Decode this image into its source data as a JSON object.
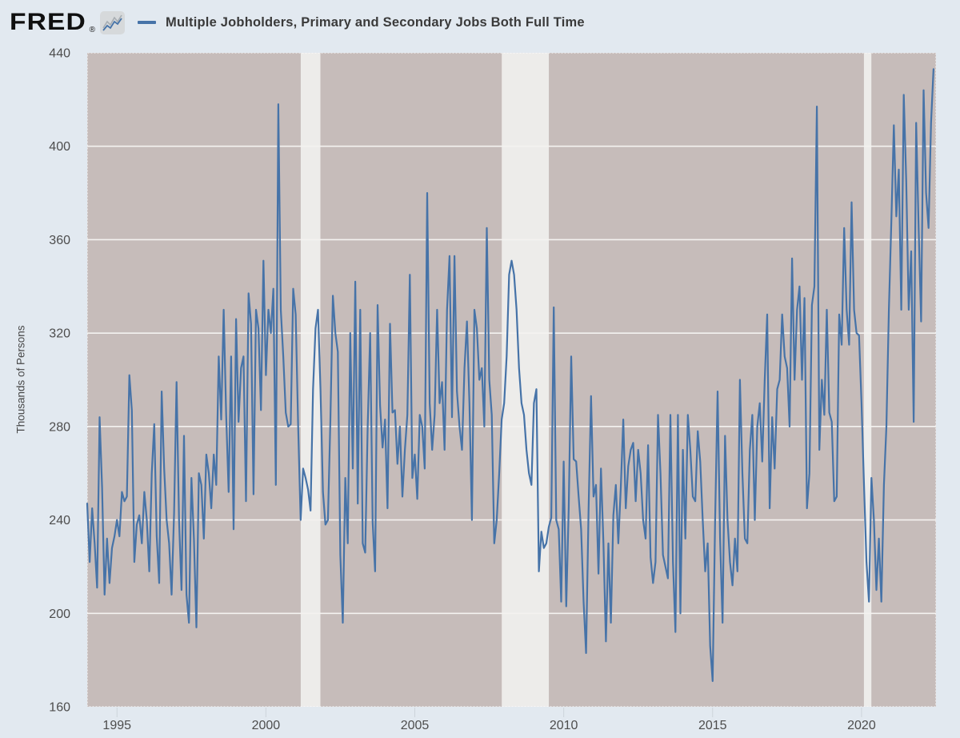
{
  "header": {
    "logo_text": "FRED",
    "registered_mark": "®",
    "legend_label": "Multiple Jobholders, Primary and Secondary Jobs Both Full Time"
  },
  "y_axis_title": "Thousands of Persons",
  "colors": {
    "page_bg": "#e2e9f0",
    "plot_bg": "#c6bcba",
    "recession_band": "#edecea",
    "gridline": "#f4f2f0",
    "plot_border": "rgba(255,255,255,0.55)",
    "line": "#4673a8",
    "tick_text": "#4d4d4d",
    "axis_tick": "#cdd4da",
    "title_text": "#3a3a3a"
  },
  "chart_data": {
    "type": "line",
    "title": "Multiple Jobholders, Primary and Secondary Jobs Both Full Time",
    "ylabel": "Thousands of Persons",
    "xlabel": "",
    "units": "Thousands of Persons",
    "frequency": "monthly",
    "legend_position": "top",
    "grid": "horizontal-white",
    "start_year": 1994,
    "start_month": 1,
    "x_domain": [
      1994.0,
      2022.5
    ],
    "y_domain": [
      160,
      440
    ],
    "y_ticks": [
      160,
      200,
      240,
      280,
      320,
      360,
      400,
      440
    ],
    "x_ticks": [
      1995,
      2000,
      2005,
      2010,
      2015,
      2020
    ],
    "recession_bands": [
      [
        2001.17,
        2001.83
      ],
      [
        2007.92,
        2009.5
      ],
      [
        2020.08,
        2020.33
      ]
    ],
    "values": [
      247,
      222,
      245,
      230,
      211,
      284,
      254,
      208,
      232,
      213,
      228,
      233,
      240,
      233,
      252,
      248,
      250,
      302,
      287,
      222,
      238,
      242,
      230,
      252,
      240,
      218,
      260,
      281,
      233,
      213,
      295,
      262,
      240,
      230,
      208,
      243,
      299,
      240,
      210,
      276,
      208,
      196,
      258,
      232,
      194,
      260,
      255,
      232,
      268,
      260,
      245,
      268,
      255,
      310,
      283,
      330,
      285,
      252,
      310,
      236,
      326,
      282,
      305,
      310,
      248,
      337,
      324,
      251,
      330,
      322,
      287,
      351,
      302,
      330,
      320,
      339,
      255,
      418,
      330,
      310,
      286,
      280,
      281,
      339,
      328,
      280,
      240,
      262,
      258,
      253,
      244,
      296,
      322,
      330,
      296,
      252,
      238,
      240,
      283,
      336,
      320,
      312,
      225,
      196,
      258,
      230,
      320,
      262,
      342,
      247,
      330,
      230,
      226,
      280,
      320,
      239,
      218,
      332,
      289,
      271,
      283,
      245,
      324,
      286,
      287,
      264,
      280,
      250,
      270,
      285,
      345,
      258,
      268,
      249,
      285,
      280,
      262,
      380,
      290,
      270,
      285,
      330,
      290,
      299,
      270,
      330,
      353,
      284,
      353,
      295,
      280,
      270,
      305,
      325,
      290,
      240,
      330,
      322,
      300,
      305,
      280,
      365,
      300,
      285,
      230,
      240,
      260,
      283,
      290,
      310,
      345,
      351,
      345,
      330,
      305,
      290,
      285,
      270,
      260,
      255,
      290,
      296,
      218,
      235,
      228,
      230,
      237,
      241,
      331,
      240,
      236,
      205,
      265,
      203,
      245,
      310,
      266,
      265,
      250,
      236,
      205,
      183,
      244,
      293,
      250,
      255,
      217,
      262,
      230,
      188,
      230,
      196,
      242,
      255,
      230,
      254,
      283,
      245,
      263,
      270,
      273,
      248,
      270,
      260,
      240,
      232,
      272,
      224,
      213,
      222,
      285,
      260,
      225,
      220,
      215,
      285,
      222,
      192,
      285,
      200,
      270,
      232,
      285,
      270,
      250,
      248,
      278,
      265,
      240,
      218,
      230,
      186,
      171,
      240,
      295,
      232,
      196,
      276,
      240,
      222,
      212,
      232,
      218,
      300,
      260,
      232,
      230,
      270,
      285,
      240,
      280,
      290,
      265,
      300,
      328,
      245,
      284,
      262,
      296,
      300,
      328,
      310,
      305,
      280,
      352,
      300,
      330,
      340,
      300,
      335,
      245,
      260,
      332,
      340,
      417,
      270,
      300,
      285,
      330,
      286,
      282,
      248,
      250,
      328,
      315,
      365,
      330,
      315,
      376,
      330,
      320,
      319,
      290,
      255,
      222,
      205,
      258,
      240,
      210,
      232,
      205,
      255,
      280,
      330,
      368,
      409,
      370,
      390,
      330,
      422,
      385,
      330,
      355,
      282,
      410,
      365,
      325,
      424,
      380,
      365,
      410,
      433
    ]
  }
}
